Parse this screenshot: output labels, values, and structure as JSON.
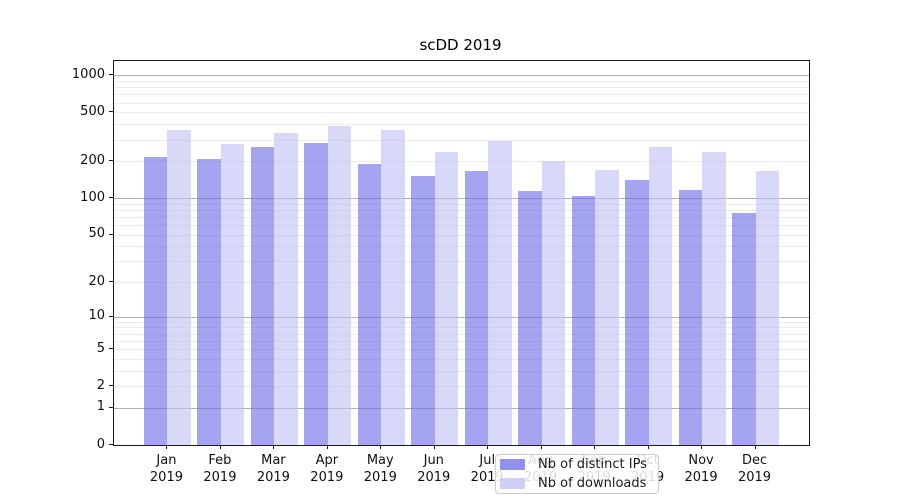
{
  "chart_data": {
    "type": "bar",
    "title": "scDD 2019",
    "categories": [
      "Jan 2019",
      "Feb 2019",
      "Mar 2019",
      "Apr 2019",
      "May 2019",
      "Jun 2019",
      "Jul 2019",
      "Aug 2019",
      "Sep 2019",
      "Oct 2019",
      "Nov 2019",
      "Dec 2019"
    ],
    "series": [
      {
        "name": "Nb of distinct IPs",
        "color": "#6c6ce7",
        "values": [
          216,
          207,
          262,
          280,
          190,
          151,
          168,
          115,
          104,
          142,
          117,
          76
        ]
      },
      {
        "name": "Nb of downloads",
        "color": "#c0c0f4",
        "values": [
          363,
          279,
          343,
          388,
          360,
          237,
          295,
          203,
          169,
          264,
          236,
          167
        ]
      }
    ],
    "bar_fill_alpha": 0.62,
    "scale": "log1p",
    "ylim": [
      0,
      1310
    ],
    "y_ticks": [
      1000,
      500,
      200,
      100,
      50,
      20,
      10,
      5,
      2,
      1,
      0
    ],
    "grid_major": [
      1,
      10,
      100,
      1000
    ],
    "legend_position": "lower center",
    "colors": {
      "major_grid": "#b0b0b0",
      "minor_grid": "#ebebeb",
      "axis": "#1a1a1a",
      "text": "#111111"
    }
  }
}
